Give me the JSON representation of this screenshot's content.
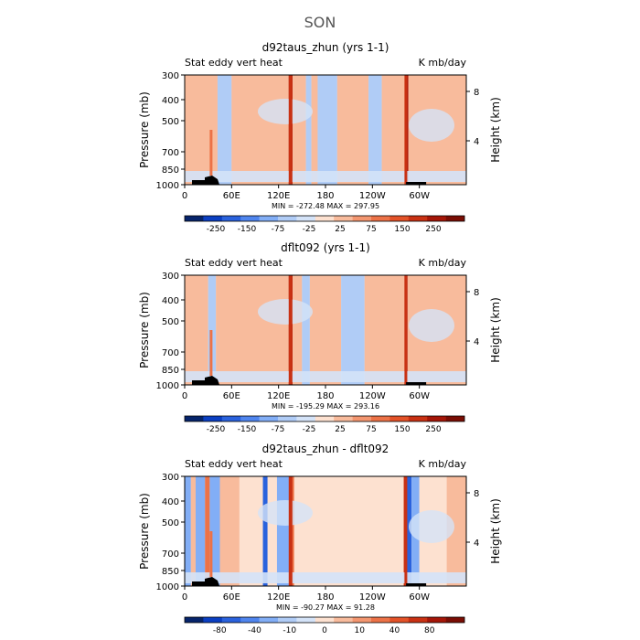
{
  "title": "SON",
  "chart_data": [
    {
      "type": "heatmap",
      "title": "d92taus_zhun (yrs 1-1)",
      "subtitle_left": "Stat eddy vert heat",
      "subtitle_right": "K mb/day",
      "xlabel": "",
      "ylabel": "Pressure (mb)",
      "ylabel_right": "Height (km)",
      "x_ticks": [
        "0",
        "60E",
        "120E",
        "180",
        "120W",
        "60W"
      ],
      "x_tick_values": [
        0,
        60,
        120,
        180,
        240,
        300
      ],
      "xlim": [
        0,
        360
      ],
      "y_ticks": [
        "300",
        "400",
        "500",
        "700",
        "850",
        "1000"
      ],
      "y_tick_values": [
        300,
        400,
        500,
        700,
        850,
        1000
      ],
      "ylim": [
        300,
        1000
      ],
      "right_ticks": [
        "8",
        "4"
      ],
      "right_tick_values": [
        8,
        4
      ],
      "stats": "MIN = -272.48   MAX = 297.95",
      "colorbar": {
        "labels": [
          "-250",
          "-150",
          "-75",
          "-25",
          "25",
          "75",
          "150",
          "250"
        ],
        "colors": [
          "#06246b",
          "#0b3fc2",
          "#2a62dd",
          "#4f85ee",
          "#82aef6",
          "#b0ccf6",
          "#d4e3f8",
          "#fde1d0",
          "#f8bb9c",
          "#f39670",
          "#ec7247",
          "#e35228",
          "#c93113",
          "#a51608",
          "#7a0d04"
        ]
      },
      "zones": [
        {
          "lon": 0,
          "value": 25
        },
        {
          "lon": 42,
          "value": -25
        },
        {
          "lon": 60,
          "value": 25
        },
        {
          "lon": 133,
          "value": 250
        },
        {
          "lon": 138,
          "value": 25
        },
        {
          "lon": 155,
          "value": -25
        },
        {
          "lon": 162,
          "value": 25
        },
        {
          "lon": 170,
          "value": -25
        },
        {
          "lon": 195,
          "value": 25
        },
        {
          "lon": 235,
          "value": -25
        },
        {
          "lon": 252,
          "value": 25
        },
        {
          "lon": 282,
          "value": 250
        },
        {
          "lon": 286,
          "value": 25
        },
        {
          "lon": 360,
          "value": 25
        }
      ]
    },
    {
      "type": "heatmap",
      "title": "dflt092 (yrs 1-1)",
      "subtitle_left": "Stat eddy vert heat",
      "subtitle_right": "K mb/day",
      "xlabel": "",
      "ylabel": "Pressure (mb)",
      "ylabel_right": "Height (km)",
      "x_ticks": [
        "0",
        "60E",
        "120E",
        "180",
        "120W",
        "60W"
      ],
      "x_tick_values": [
        0,
        60,
        120,
        180,
        240,
        300
      ],
      "xlim": [
        0,
        360
      ],
      "y_ticks": [
        "300",
        "400",
        "500",
        "700",
        "850",
        "1000"
      ],
      "y_tick_values": [
        300,
        400,
        500,
        700,
        850,
        1000
      ],
      "ylim": [
        300,
        1000
      ],
      "right_ticks": [
        "8",
        "4"
      ],
      "right_tick_values": [
        8,
        4
      ],
      "stats": "MIN = -195.29   MAX = 293.16",
      "colorbar": {
        "labels": [
          "-250",
          "-150",
          "-75",
          "-25",
          "25",
          "75",
          "150",
          "250"
        ],
        "colors": [
          "#06246b",
          "#0b3fc2",
          "#2a62dd",
          "#4f85ee",
          "#82aef6",
          "#b0ccf6",
          "#d4e3f8",
          "#fde1d0",
          "#f8bb9c",
          "#f39670",
          "#ec7247",
          "#e35228",
          "#c93113",
          "#a51608",
          "#7a0d04"
        ]
      },
      "zones": [
        {
          "lon": 0,
          "value": 25
        },
        {
          "lon": 30,
          "value": -25
        },
        {
          "lon": 40,
          "value": 25
        },
        {
          "lon": 133,
          "value": 250
        },
        {
          "lon": 138,
          "value": 25
        },
        {
          "lon": 150,
          "value": -25
        },
        {
          "lon": 160,
          "value": 25
        },
        {
          "lon": 200,
          "value": -25
        },
        {
          "lon": 230,
          "value": 25
        },
        {
          "lon": 281,
          "value": 250
        },
        {
          "lon": 285,
          "value": 25
        },
        {
          "lon": 360,
          "value": 25
        }
      ]
    },
    {
      "type": "heatmap",
      "title": "d92taus_zhun - dflt092",
      "subtitle_left": "Stat eddy vert heat",
      "subtitle_right": "K mb/day",
      "xlabel": "",
      "ylabel": "Pressure (mb)",
      "ylabel_right": "Height (km)",
      "x_ticks": [
        "0",
        "60E",
        "120E",
        "180",
        "120W",
        "60W"
      ],
      "x_tick_values": [
        0,
        60,
        120,
        180,
        240,
        300
      ],
      "xlim": [
        0,
        360
      ],
      "y_ticks": [
        "300",
        "400",
        "500",
        "700",
        "850",
        "1000"
      ],
      "y_tick_values": [
        300,
        400,
        500,
        700,
        850,
        1000
      ],
      "ylim": [
        300,
        1000
      ],
      "right_ticks": [
        "8",
        "4"
      ],
      "right_tick_values": [
        8,
        4
      ],
      "stats": "MIN = -90.27   MAX =  91.28",
      "colorbar": {
        "labels": [
          "-80",
          "-40",
          "-10",
          "0",
          "10",
          "40",
          "80"
        ],
        "colors": [
          "#06246b",
          "#0b3fc2",
          "#2a62dd",
          "#4f85ee",
          "#82aef6",
          "#b0ccf6",
          "#d4e3f8",
          "#fde1d0",
          "#f8bb9c",
          "#f39670",
          "#ec7247",
          "#e35228",
          "#c93113",
          "#a51608",
          "#7a0d04"
        ]
      },
      "zones": [
        {
          "lon": 0,
          "value": -10
        },
        {
          "lon": 8,
          "value": 10
        },
        {
          "lon": 14,
          "value": -10
        },
        {
          "lon": 26,
          "value": 40
        },
        {
          "lon": 32,
          "value": -10
        },
        {
          "lon": 45,
          "value": 10
        },
        {
          "lon": 70,
          "value": 5
        },
        {
          "lon": 100,
          "value": -40
        },
        {
          "lon": 106,
          "value": 5
        },
        {
          "lon": 118,
          "value": -10
        },
        {
          "lon": 134,
          "value": 40
        },
        {
          "lon": 140,
          "value": 5
        },
        {
          "lon": 280,
          "value": 80
        },
        {
          "lon": 284,
          "value": -40
        },
        {
          "lon": 290,
          "value": -10
        },
        {
          "lon": 300,
          "value": 5
        },
        {
          "lon": 335,
          "value": 10
        },
        {
          "lon": 360,
          "value": 5
        }
      ]
    }
  ]
}
